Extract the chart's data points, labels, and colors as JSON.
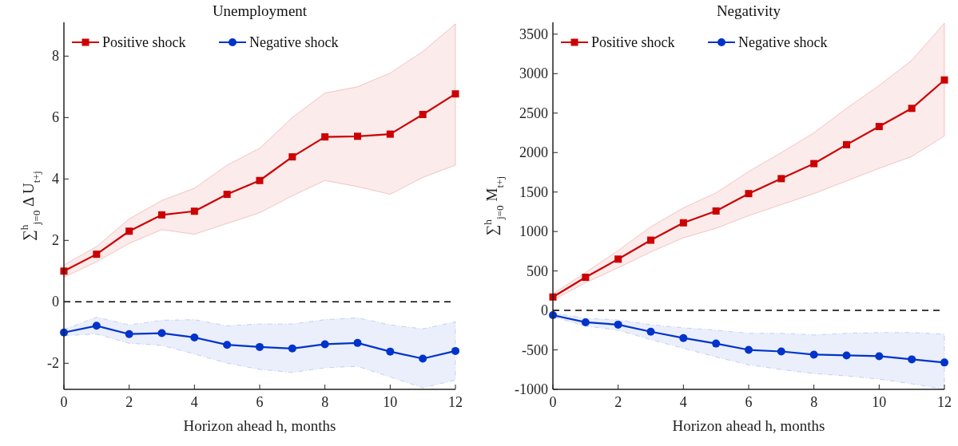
{
  "chart_data": [
    {
      "type": "line",
      "title": "Unemployment",
      "xlabel": "Horizon ahead h, months",
      "ylabel": "∑$^{h}$$_{j=0}$ Δ U$_{t+j}$",
      "x": [
        0,
        1,
        2,
        3,
        4,
        5,
        6,
        7,
        8,
        9,
        10,
        11,
        12
      ],
      "xlim": [
        0,
        12
      ],
      "xticks": [
        0,
        2,
        4,
        6,
        8,
        10,
        12
      ],
      "ylim": [
        -2.85,
        9.1
      ],
      "yticks": [
        -2,
        0,
        2,
        4,
        6,
        8
      ],
      "legend": "top left",
      "grid": false,
      "line_style": "solid",
      "ref_lines": [
        {
          "axis": "y",
          "value": 0,
          "color": "#000000",
          "line_style": "dashed"
        }
      ],
      "series": [
        {
          "name": "Positive shock",
          "color": "#cc0000",
          "marker": "square",
          "values": [
            1.0,
            1.55,
            2.3,
            2.83,
            2.95,
            3.5,
            3.95,
            4.72,
            5.37,
            5.39,
            5.46,
            6.1,
            6.77
          ],
          "upper": [
            1.2,
            1.8,
            2.7,
            3.3,
            3.7,
            4.45,
            5.0,
            6.0,
            6.8,
            7.0,
            7.45,
            8.15,
            9.05
          ],
          "lower": [
            0.8,
            1.3,
            1.9,
            2.35,
            2.2,
            2.55,
            2.9,
            3.45,
            3.95,
            3.75,
            3.5,
            4.05,
            4.45
          ]
        },
        {
          "name": "Negative shock",
          "color": "#0033cc",
          "marker": "circle",
          "values": [
            -1.0,
            -0.78,
            -1.05,
            -1.02,
            -1.16,
            -1.4,
            -1.47,
            -1.52,
            -1.38,
            -1.34,
            -1.62,
            -1.85,
            -1.6
          ],
          "upper": [
            -0.9,
            -0.5,
            -0.75,
            -0.6,
            -0.58,
            -0.78,
            -0.72,
            -0.72,
            -0.58,
            -0.52,
            -0.75,
            -0.88,
            -0.65
          ],
          "lower": [
            -1.1,
            -1.05,
            -1.35,
            -1.42,
            -1.7,
            -2.0,
            -2.2,
            -2.3,
            -2.15,
            -2.1,
            -2.45,
            -2.8,
            -2.55
          ]
        }
      ]
    },
    {
      "type": "line",
      "title": "Negativity",
      "xlabel": "Horizon ahead h, months",
      "ylabel": "∑$^{h}$$_{j=0}$ M$_{t+j}$",
      "x": [
        0,
        1,
        2,
        3,
        4,
        5,
        6,
        7,
        8,
        9,
        10,
        11,
        12
      ],
      "xlim": [
        0,
        12
      ],
      "xticks": [
        0,
        2,
        4,
        6,
        8,
        10,
        12
      ],
      "ylim": [
        -1000,
        3650
      ],
      "yticks": [
        -1000,
        -500,
        0,
        500,
        1000,
        1500,
        2000,
        2500,
        3000,
        3500
      ],
      "legend": "top left",
      "grid": false,
      "line_style": "solid",
      "ref_lines": [
        {
          "axis": "y",
          "value": 0,
          "color": "#000000",
          "line_style": "dashed"
        }
      ],
      "series": [
        {
          "name": "Positive shock",
          "color": "#cc0000",
          "marker": "square",
          "values": [
            170,
            420,
            650,
            890,
            1110,
            1260,
            1480,
            1670,
            1860,
            2100,
            2330,
            2560,
            2920
          ],
          "upper": [
            210,
            480,
            760,
            1060,
            1300,
            1490,
            1760,
            2000,
            2250,
            2560,
            2850,
            3170,
            3640
          ],
          "lower": [
            130,
            350,
            540,
            740,
            920,
            1040,
            1200,
            1340,
            1480,
            1640,
            1800,
            1950,
            2210
          ]
        },
        {
          "name": "Negative shock",
          "color": "#0033cc",
          "marker": "circle",
          "values": [
            -60,
            -150,
            -180,
            -270,
            -350,
            -420,
            -500,
            -520,
            -560,
            -570,
            -580,
            -620,
            -660
          ],
          "upper": [
            -30,
            -100,
            -120,
            -180,
            -220,
            -250,
            -290,
            -290,
            -310,
            -290,
            -280,
            -280,
            -300
          ],
          "lower": [
            -80,
            -200,
            -250,
            -370,
            -480,
            -590,
            -690,
            -750,
            -800,
            -830,
            -870,
            -930,
            -1000
          ]
        }
      ]
    }
  ]
}
